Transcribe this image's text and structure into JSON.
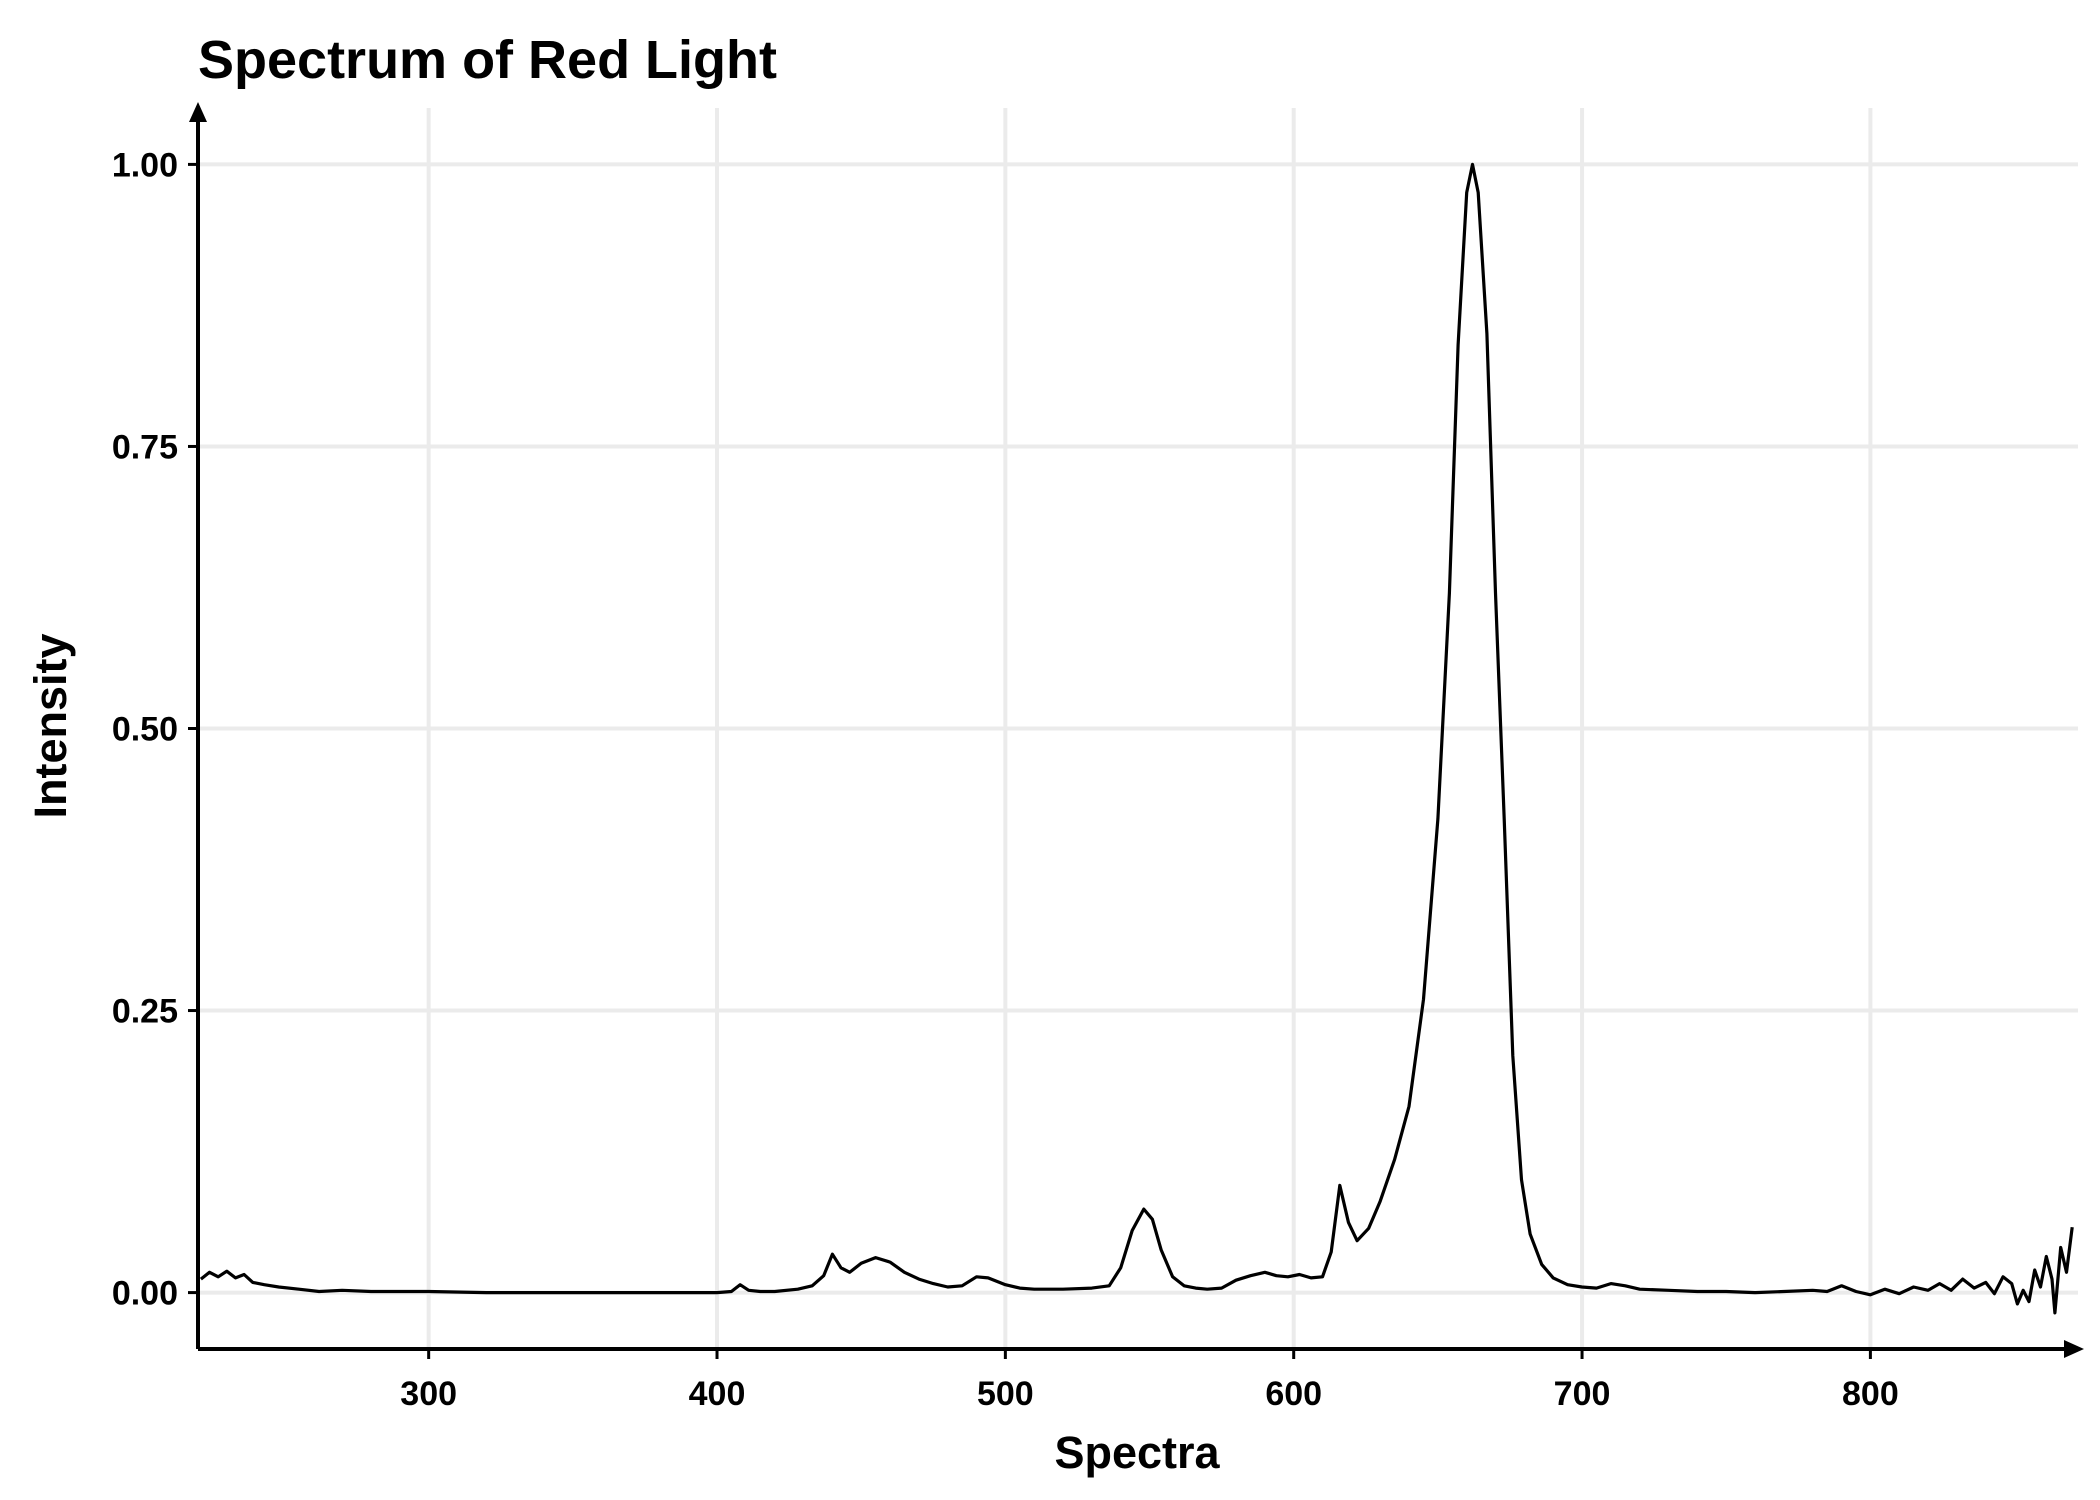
{
  "chart_data": {
    "type": "line",
    "title": "Spectrum of Red Light",
    "xlabel": "Spectra",
    "ylabel": "Intensity",
    "xlim": [
      220,
      872
    ],
    "ylim": [
      -0.05,
      1.05
    ],
    "x_ticks": [
      300,
      400,
      500,
      600,
      700,
      800
    ],
    "y_ticks": [
      0,
      0.25,
      0.5,
      0.75,
      1.0
    ],
    "x_tick_labels": [
      "300",
      "400",
      "500",
      "600",
      "700",
      "800"
    ],
    "y_tick_labels": [
      "0.00",
      "0.25",
      "0.50",
      "0.75",
      "1.00"
    ],
    "grid": true,
    "legend": "none",
    "series": [
      {
        "color": "#000000",
        "points": [
          [
            221,
            0.012
          ],
          [
            224,
            0.018
          ],
          [
            227,
            0.014
          ],
          [
            230,
            0.019
          ],
          [
            233,
            0.013
          ],
          [
            236,
            0.016
          ],
          [
            239,
            0.009
          ],
          [
            243,
            0.007
          ],
          [
            248,
            0.005
          ],
          [
            255,
            0.003
          ],
          [
            262,
            0.001
          ],
          [
            270,
            0.002
          ],
          [
            280,
            0.001
          ],
          [
            290,
            0.001
          ],
          [
            300,
            0.001
          ],
          [
            320,
            0.0
          ],
          [
            340,
            0.0
          ],
          [
            360,
            0.0
          ],
          [
            380,
            0.0
          ],
          [
            400,
            0.0
          ],
          [
            405,
            0.001
          ],
          [
            408,
            0.007
          ],
          [
            411,
            0.002
          ],
          [
            415,
            0.001
          ],
          [
            420,
            0.001
          ],
          [
            428,
            0.003
          ],
          [
            433,
            0.006
          ],
          [
            437,
            0.015
          ],
          [
            440,
            0.034
          ],
          [
            443,
            0.022
          ],
          [
            446,
            0.018
          ],
          [
            450,
            0.026
          ],
          [
            455,
            0.031
          ],
          [
            460,
            0.027
          ],
          [
            465,
            0.018
          ],
          [
            470,
            0.012
          ],
          [
            475,
            0.008
          ],
          [
            480,
            0.005
          ],
          [
            485,
            0.006
          ],
          [
            490,
            0.014
          ],
          [
            494,
            0.013
          ],
          [
            500,
            0.007
          ],
          [
            505,
            0.004
          ],
          [
            510,
            0.003
          ],
          [
            520,
            0.003
          ],
          [
            530,
            0.004
          ],
          [
            536,
            0.006
          ],
          [
            540,
            0.022
          ],
          [
            544,
            0.055
          ],
          [
            548,
            0.074
          ],
          [
            551,
            0.065
          ],
          [
            554,
            0.038
          ],
          [
            558,
            0.014
          ],
          [
            562,
            0.006
          ],
          [
            566,
            0.004
          ],
          [
            570,
            0.003
          ],
          [
            575,
            0.004
          ],
          [
            580,
            0.011
          ],
          [
            585,
            0.015
          ],
          [
            590,
            0.018
          ],
          [
            594,
            0.015
          ],
          [
            598,
            0.014
          ],
          [
            602,
            0.016
          ],
          [
            606,
            0.013
          ],
          [
            610,
            0.014
          ],
          [
            613,
            0.036
          ],
          [
            616,
            0.095
          ],
          [
            619,
            0.062
          ],
          [
            622,
            0.046
          ],
          [
            626,
            0.057
          ],
          [
            630,
            0.081
          ],
          [
            635,
            0.118
          ],
          [
            640,
            0.165
          ],
          [
            645,
            0.26
          ],
          [
            650,
            0.42
          ],
          [
            654,
            0.62
          ],
          [
            657,
            0.84
          ],
          [
            660,
            0.975
          ],
          [
            662,
            1.0
          ],
          [
            664,
            0.975
          ],
          [
            667,
            0.85
          ],
          [
            670,
            0.62
          ],
          [
            673,
            0.42
          ],
          [
            676,
            0.21
          ],
          [
            679,
            0.1
          ],
          [
            682,
            0.052
          ],
          [
            686,
            0.025
          ],
          [
            690,
            0.013
          ],
          [
            695,
            0.007
          ],
          [
            700,
            0.005
          ],
          [
            705,
            0.004
          ],
          [
            710,
            0.008
          ],
          [
            715,
            0.006
          ],
          [
            720,
            0.003
          ],
          [
            730,
            0.002
          ],
          [
            740,
            0.001
          ],
          [
            750,
            0.001
          ],
          [
            760,
            0.0
          ],
          [
            770,
            0.001
          ],
          [
            780,
            0.002
          ],
          [
            785,
            0.001
          ],
          [
            790,
            0.006
          ],
          [
            795,
            0.001
          ],
          [
            800,
            -0.002
          ],
          [
            805,
            0.003
          ],
          [
            810,
            -0.001
          ],
          [
            815,
            0.005
          ],
          [
            820,
            0.002
          ],
          [
            824,
            0.008
          ],
          [
            828,
            0.002
          ],
          [
            832,
            0.012
          ],
          [
            836,
            0.004
          ],
          [
            840,
            0.009
          ],
          [
            843,
            -0.001
          ],
          [
            846,
            0.014
          ],
          [
            849,
            0.008
          ],
          [
            851,
            -0.01
          ],
          [
            853,
            0.002
          ],
          [
            855,
            -0.008
          ],
          [
            857,
            0.02
          ],
          [
            859,
            0.005
          ],
          [
            861,
            0.032
          ],
          [
            863,
            0.012
          ],
          [
            864,
            -0.018
          ],
          [
            866,
            0.04
          ],
          [
            868,
            0.018
          ],
          [
            870,
            0.058
          ]
        ]
      }
    ]
  }
}
